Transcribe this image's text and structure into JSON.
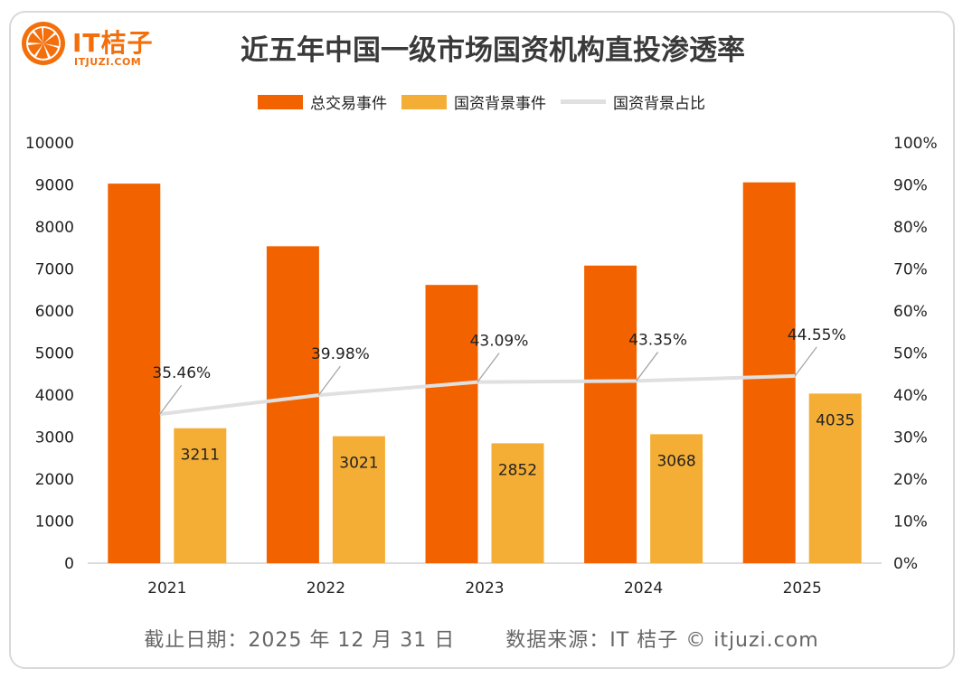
{
  "header": {
    "logo_name": "IT桔子",
    "logo_domain": "ITJUZI.COM",
    "title": "近五年中国一级市场国资机构直投渗透率"
  },
  "colors": {
    "total": "#f26300",
    "state": "#f5ae35",
    "ratio": "#e0e0e0",
    "brand": "#f26f0b"
  },
  "chart_data": {
    "type": "bar",
    "categories": [
      "2021",
      "2022",
      "2023",
      "2024",
      "2025"
    ],
    "series": [
      {
        "name": "总交易事件",
        "type": "bar",
        "axis": "left",
        "values": [
          9030,
          7540,
          6620,
          7080,
          9060
        ]
      },
      {
        "name": "国资背景事件",
        "type": "bar",
        "axis": "left",
        "values": [
          3211,
          3021,
          2852,
          3068,
          4035
        ],
        "labels": [
          "3211",
          "3021",
          "2852",
          "3068",
          "4035"
        ]
      },
      {
        "name": "国资背景占比",
        "type": "line",
        "axis": "right",
        "values": [
          35.46,
          39.98,
          43.09,
          43.35,
          44.55
        ],
        "labels": [
          "35.46%",
          "39.98%",
          "43.09%",
          "43.35%",
          "44.55%"
        ]
      }
    ],
    "y_left": {
      "min": 0,
      "max": 10000,
      "ticks": [
        "0",
        "1000",
        "2000",
        "3000",
        "4000",
        "5000",
        "6000",
        "7000",
        "8000",
        "9000",
        "10000"
      ]
    },
    "y_right": {
      "min": 0,
      "max": 100,
      "ticks": [
        "0%",
        "10%",
        "20%",
        "30%",
        "40%",
        "50%",
        "60%",
        "70%",
        "80%",
        "90%",
        "100%"
      ]
    },
    "legend_position": "top-center",
    "grid": false
  },
  "footer": {
    "date": "截止日期：2025 年 12 月 31 日",
    "source": "数据来源：IT 桔子 © itjuzi.com"
  }
}
